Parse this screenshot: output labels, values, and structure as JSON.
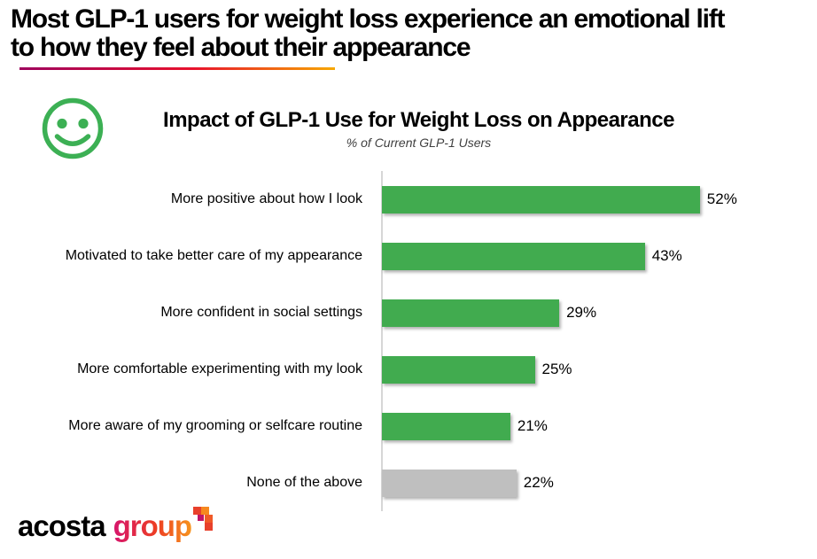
{
  "page_title": {
    "full": "Most GLP-1 users for weight loss experience an emotional lift to how they feel about their appearance",
    "lines": [
      "Most GLP-1 users for weight loss experience an emotional lift",
      "to how they feel about their appearance"
    ]
  },
  "chart": {
    "title": "Impact of GLP-1 Use for Weight Loss on Appearance",
    "subtitle": "% of Current GLP-1 Users",
    "icon": "smiley-icon"
  },
  "chart_data": {
    "type": "bar",
    "orientation": "horizontal",
    "title": "Impact of GLP-1 Use for Weight Loss on Appearance",
    "subtitle": "% of Current GLP-1 Users",
    "categories": [
      "More positive about how I look",
      "Motivated to take better care of my appearance",
      "More confident in social settings",
      "More comfortable experimenting with my look",
      "More aware of my grooming or selfcare routine",
      "None of the above"
    ],
    "values": [
      52,
      43,
      29,
      25,
      21,
      22
    ],
    "value_labels": [
      "52%",
      "43%",
      "29%",
      "25%",
      "21%",
      "22%"
    ],
    "bar_colors": [
      "#41ab4f",
      "#41ab4f",
      "#41ab4f",
      "#41ab4f",
      "#41ab4f",
      "#bfbfbf"
    ],
    "unit": "%",
    "xlim": [
      0,
      55
    ],
    "grid": false,
    "legend": false,
    "value_labels_position": "end-of-bar"
  },
  "colors": {
    "bar_green": "#41ab4f",
    "bar_gray": "#bfbfbf",
    "axis_line": "#d6d6d6",
    "smiley_green": "#3cb054",
    "underline_gradient": [
      "#9e005d",
      "#e8112d",
      "#f7a800"
    ],
    "logo_text_gradient": [
      "#d6156c",
      "#ed3e23",
      "#f7941d"
    ],
    "logo_arrow_squares": [
      "#e8402b",
      "#f6881f",
      "#c11568",
      "#f05a28",
      "#e8402b"
    ]
  },
  "footer": {
    "logo_text_black": "acosta",
    "logo_text_gradient": "group"
  }
}
